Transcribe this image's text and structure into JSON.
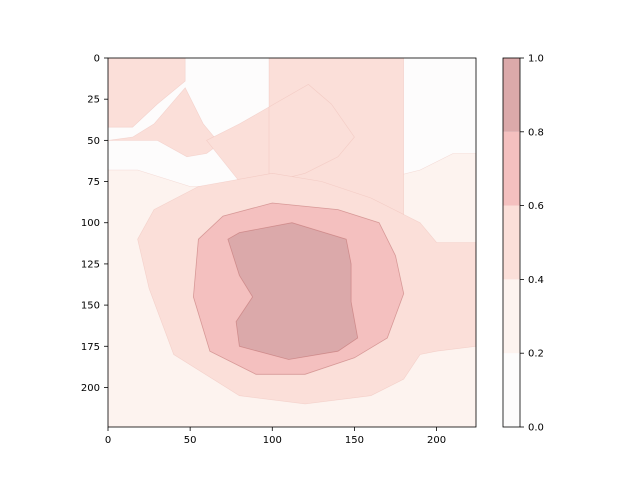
{
  "chart_data": {
    "type": "heatmap",
    "title": "",
    "xlabel": "",
    "ylabel": "",
    "xlim": [
      0,
      224
    ],
    "ylim": [
      224,
      0
    ],
    "x_ticks": [
      "0",
      "50",
      "100",
      "150",
      "200"
    ],
    "y_ticks": [
      "0",
      "25",
      "50",
      "75",
      "100",
      "125",
      "150",
      "175",
      "200"
    ],
    "colorbar": {
      "ticks": [
        "0.0",
        "0.2",
        "0.4",
        "0.6",
        "0.8",
        "1.0"
      ],
      "levels": [
        0.0,
        0.2,
        0.4,
        0.6,
        0.8,
        1.0
      ],
      "colors": [
        "#fdfcfc",
        "#fdf3ef",
        "#fbdfd9",
        "#f4c0bf",
        "#dba9aa"
      ]
    },
    "contours": [
      {
        "level": 0.2,
        "regions": [
          {
            "points": [
              [
                0,
                68
              ],
              [
                18,
                68
              ],
              [
                50,
                78
              ],
              [
                100,
                78
              ],
              [
                150,
                78
              ],
              [
                190,
                68
              ],
              [
                210,
                58
              ],
              [
                224,
                58
              ],
              [
                224,
                224
              ],
              [
                190,
                224
              ],
              [
                180,
                224
              ],
              [
                90,
                224
              ],
              [
                80,
                224
              ],
              [
                0,
                224
              ]
            ]
          }
        ]
      },
      {
        "level": 0.4,
        "regions": [
          {
            "points": [
              [
                0,
                42
              ],
              [
                15,
                42
              ],
              [
                30,
                28
              ],
              [
                47,
                14
              ],
              [
                47,
                0
              ],
              [
                0,
                0
              ]
            ]
          },
          {
            "points": [
              [
                0,
                50
              ],
              [
                30,
                50
              ],
              [
                48,
                60
              ],
              [
                60,
                58
              ],
              [
                68,
                52
              ],
              [
                58,
                40
              ],
              [
                47,
                18
              ],
              [
                28,
                40
              ],
              [
                15,
                48
              ]
            ]
          },
          {
            "points": [
              [
                98,
                0
              ],
              [
                180,
                0
              ],
              [
                180,
                110
              ],
              [
                165,
                95
              ],
              [
                120,
                80
              ],
              [
                80,
                75
              ],
              [
                60,
                50
              ],
              [
                80,
                40
              ],
              [
                122,
                16
              ],
              [
                136,
                28
              ],
              [
                150,
                48
              ],
              [
                140,
                60
              ],
              [
                120,
                70
              ],
              [
                100,
                75
              ],
              [
                98,
                70
              ],
              [
                98,
                0
              ]
            ]
          },
          {
            "points": [
              [
                18,
                110
              ],
              [
                28,
                92
              ],
              [
                55,
                78
              ],
              [
                100,
                70
              ],
              [
                130,
                75
              ],
              [
                160,
                85
              ],
              [
                190,
                100
              ],
              [
                200,
                112
              ],
              [
                224,
                112
              ],
              [
                224,
                175
              ],
              [
                200,
                178
              ],
              [
                190,
                180
              ],
              [
                180,
                195
              ],
              [
                160,
                205
              ],
              [
                120,
                210
              ],
              [
                80,
                205
              ],
              [
                40,
                180
              ],
              [
                25,
                140
              ]
            ]
          }
        ]
      },
      {
        "level": 0.6,
        "regions": [
          {
            "points": [
              [
                55,
                110
              ],
              [
                70,
                96
              ],
              [
                100,
                88
              ],
              [
                140,
                92
              ],
              [
                165,
                100
              ],
              [
                175,
                120
              ],
              [
                180,
                143
              ],
              [
                170,
                170
              ],
              [
                150,
                182
              ],
              [
                120,
                192
              ],
              [
                90,
                192
              ],
              [
                62,
                178
              ],
              [
                52,
                145
              ]
            ]
          }
        ]
      },
      {
        "level": 0.8,
        "regions": [
          {
            "points": [
              [
                73,
                110
              ],
              [
                80,
                106
              ],
              [
                112,
                100
              ],
              [
                145,
                110
              ],
              [
                148,
                125
              ],
              [
                148,
                148
              ],
              [
                152,
                170
              ],
              [
                140,
                178
              ],
              [
                110,
                183
              ],
              [
                80,
                175
              ],
              [
                78,
                160
              ],
              [
                88,
                145
              ],
              [
                80,
                132
              ]
            ]
          }
        ]
      }
    ]
  }
}
